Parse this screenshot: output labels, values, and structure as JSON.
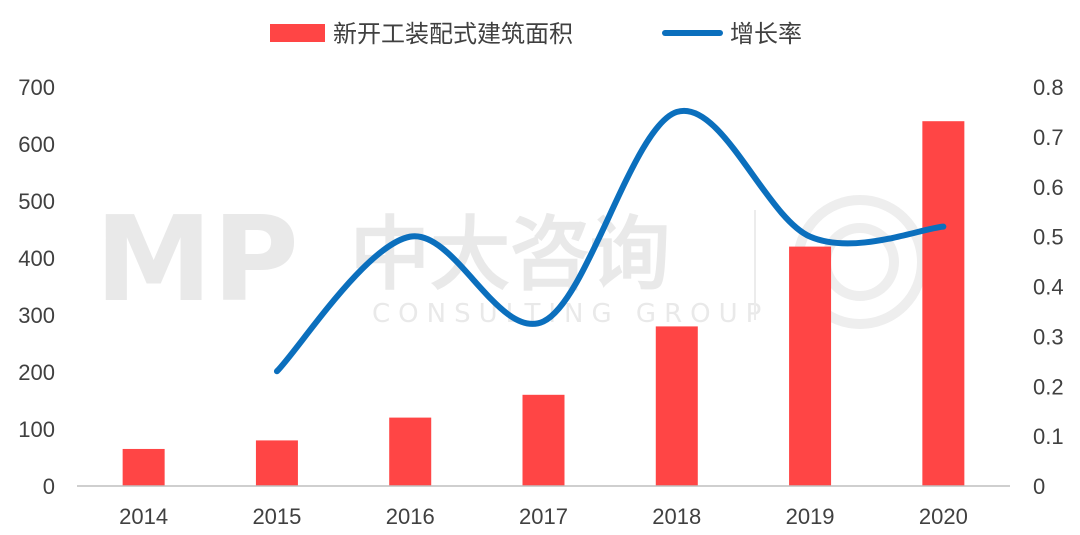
{
  "chart_data": {
    "type": "bar",
    "categories": [
      "2014",
      "2015",
      "2016",
      "2017",
      "2018",
      "2019",
      "2020"
    ],
    "series": [
      {
        "name": "新开工装配式建筑面积",
        "type": "bar",
        "axis": "left",
        "color": "#ff4545",
        "values": [
          65,
          80,
          120,
          160,
          280,
          420,
          640
        ]
      },
      {
        "name": "增长率",
        "type": "line",
        "axis": "right",
        "color": "#0b6fbd",
        "values": [
          null,
          0.23,
          0.5,
          0.33,
          0.75,
          0.5,
          0.52
        ]
      }
    ],
    "ylim_left": [
      0,
      700
    ],
    "yticks_left": [
      "0",
      "100",
      "200",
      "300",
      "400",
      "500",
      "600",
      "700"
    ],
    "ylim_right": [
      0,
      0.8
    ],
    "yticks_right": [
      "0",
      "0.1",
      "0.2",
      "0.3",
      "0.4",
      "0.5",
      "0.6",
      "0.7",
      "0.8"
    ],
    "legend": "top-center",
    "grid": false
  },
  "watermark": {
    "logo": "MP",
    "brand": "中大咨询",
    "sub": "CONSULTING GROUP"
  }
}
